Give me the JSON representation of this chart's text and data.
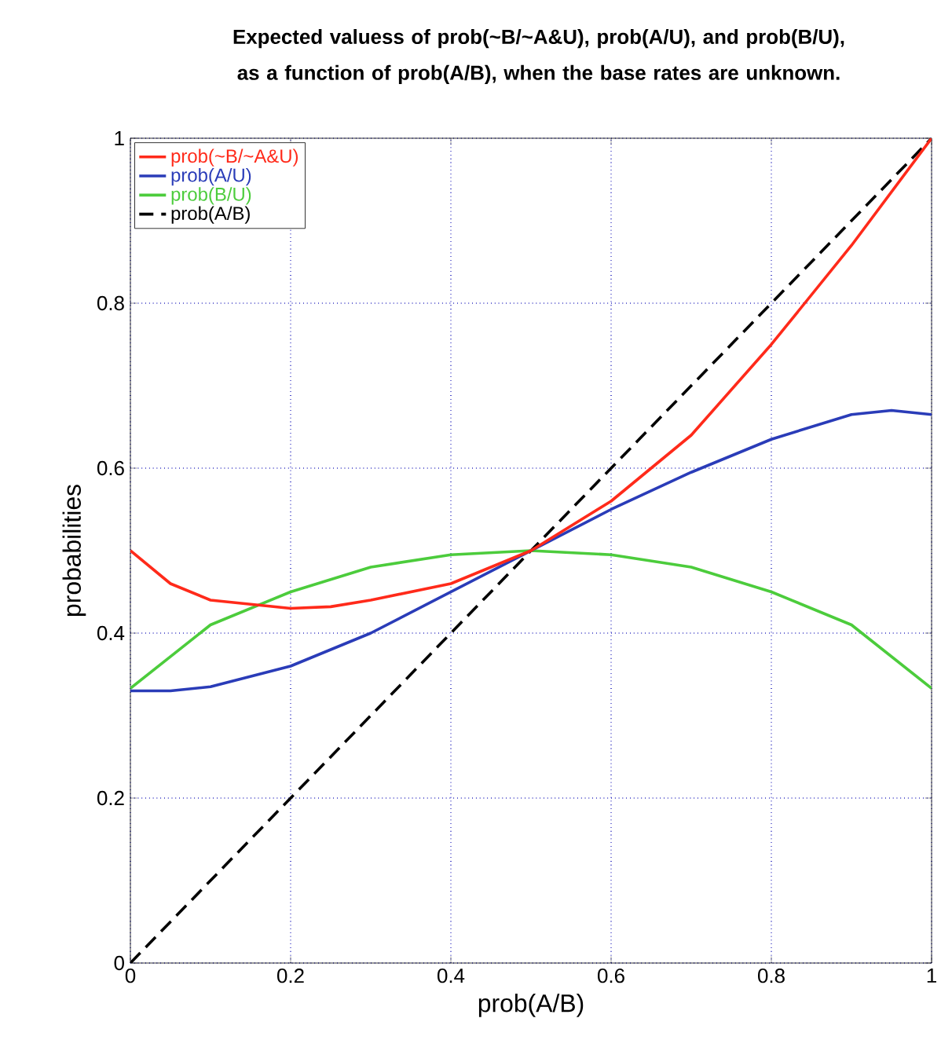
{
  "chart_data": {
    "type": "line",
    "title": "Expected valuess of prob(~B/~A&U), prob(A/U), and prob(B/U), as a function of prob(A/B), when the base rates are unknown.",
    "xlabel": "prob(A/B)",
    "ylabel": "probabilities",
    "xlim": [
      0,
      1
    ],
    "ylim": [
      0,
      1
    ],
    "xticks": [
      0,
      0.2,
      0.4,
      0.6,
      0.8,
      1
    ],
    "yticks": [
      0,
      0.2,
      0.4,
      0.6,
      0.8,
      1
    ],
    "grid": true,
    "legend": "top left",
    "series": [
      {
        "name": "prob(~B/~A&U)",
        "color": "#ff2a1a",
        "line_style": "solid",
        "x": [
          0,
          0.05,
          0.1,
          0.15,
          0.2,
          0.25,
          0.3,
          0.4,
          0.5,
          0.6,
          0.7,
          0.8,
          0.9,
          1
        ],
        "values": [
          0.5,
          0.46,
          0.44,
          0.435,
          0.43,
          0.432,
          0.44,
          0.46,
          0.5,
          0.56,
          0.64,
          0.75,
          0.87,
          1
        ]
      },
      {
        "name": "prob(A/U)",
        "color": "#2a3cb8",
        "line_style": "solid",
        "x": [
          0,
          0.05,
          0.1,
          0.2,
          0.3,
          0.4,
          0.5,
          0.6,
          0.7,
          0.8,
          0.9,
          0.95,
          1
        ],
        "values": [
          0.33,
          0.33,
          0.335,
          0.36,
          0.4,
          0.45,
          0.5,
          0.55,
          0.595,
          0.635,
          0.665,
          0.67,
          0.665
        ]
      },
      {
        "name": "prob(B/U)",
        "color": "#4ccc3c",
        "line_style": "solid",
        "x": [
          0,
          0.1,
          0.2,
          0.3,
          0.4,
          0.5,
          0.6,
          0.7,
          0.8,
          0.9,
          1
        ],
        "values": [
          0.333,
          0.41,
          0.45,
          0.48,
          0.495,
          0.5,
          0.495,
          0.48,
          0.45,
          0.41,
          0.333
        ]
      },
      {
        "name": "prob(A/B)",
        "color": "#000000",
        "line_style": "dashed",
        "x": [
          0,
          1
        ],
        "values": [
          0,
          1
        ]
      }
    ]
  }
}
